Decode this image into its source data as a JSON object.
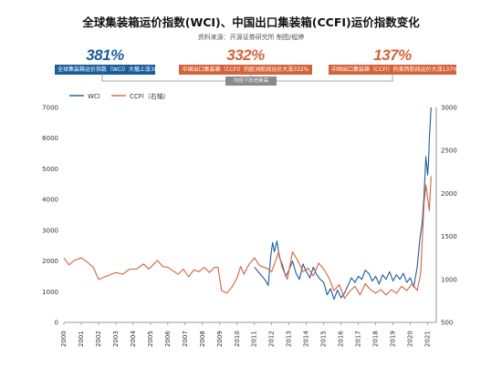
{
  "title": "全球集装箱运价指数(WCI)、中国出口集装箱(CCFI)运价指数变化",
  "source": "资料来源：开源证券研究所    制图/程婷",
  "callouts": [
    {
      "pct": "381%",
      "text": "全球集装箱运价指数（WCI）大幅上涨381%",
      "color": "#1a5d9a"
    },
    {
      "pct": "332%",
      "text": "中国出口集装箱（CCFI）的欧洲航线运价大涨332%",
      "color": "#d4633a"
    },
    {
      "pct": "137%",
      "text": "中国出口集装箱（CCFI）的美西航线运价大涨137%",
      "color": "#d4633a"
    }
  ],
  "note": "均创下历史新高",
  "chart_data": {
    "type": "line",
    "title": "全球集装箱运价指数(WCI)、中国出口集装箱(CCFI)运价指数变化",
    "legend_position": "top-left",
    "grid": false,
    "x_tick_labels": [
      "2000",
      "2001",
      "2002",
      "2003",
      "2004",
      "2005",
      "2006",
      "2007",
      "2008",
      "2009",
      "2010",
      "2011",
      "2012",
      "2013",
      "2014",
      "2015",
      "2016",
      "2017",
      "2018",
      "2019",
      "2020",
      "2021"
    ],
    "xlim": [
      2000,
      2021.5
    ],
    "y_left": {
      "ticks": [
        0,
        1000,
        2000,
        3000,
        4000,
        5000,
        6000,
        7000
      ],
      "ylim": [
        0,
        7000
      ]
    },
    "y_right": {
      "ticks": [
        500,
        1000,
        1500,
        2000,
        2500,
        3000
      ],
      "ylim": [
        500,
        3000
      ]
    },
    "series": [
      {
        "name": "WCI",
        "axis": "left",
        "color": "#1a5d9a",
        "x": [
          2011.0,
          2011.3,
          2011.6,
          2011.8,
          2011.95,
          2012.05,
          2012.15,
          2012.3,
          2012.45,
          2012.6,
          2012.8,
          2013.0,
          2013.2,
          2013.4,
          2013.6,
          2013.8,
          2014.0,
          2014.2,
          2014.4,
          2014.6,
          2014.8,
          2015.0,
          2015.2,
          2015.4,
          2015.6,
          2015.8,
          2016.0,
          2016.2,
          2016.4,
          2016.6,
          2016.8,
          2017.0,
          2017.2,
          2017.4,
          2017.6,
          2017.8,
          2018.0,
          2018.2,
          2018.4,
          2018.6,
          2018.8,
          2019.0,
          2019.2,
          2019.4,
          2019.6,
          2019.8,
          2020.0,
          2020.2,
          2020.4,
          2020.55,
          2020.7,
          2020.8,
          2020.9,
          2020.95,
          2021.0,
          2021.05,
          2021.1,
          2021.15,
          2021.2
        ],
        "y": [
          1800,
          1600,
          1400,
          1200,
          2200,
          2600,
          2300,
          2650,
          2100,
          1900,
          1500,
          1700,
          2000,
          1600,
          1400,
          1900,
          1650,
          1450,
          1800,
          1550,
          1400,
          1300,
          900,
          1100,
          750,
          1050,
          800,
          950,
          1200,
          1450,
          1300,
          1500,
          1400,
          1700,
          1600,
          1350,
          1500,
          1250,
          1550,
          1400,
          1650,
          1350,
          1550,
          1400,
          1600,
          1300,
          1450,
          1150,
          1800,
          2700,
          3300,
          4200,
          5400,
          5100,
          4800,
          5200,
          6000,
          6500,
          7000
        ]
      },
      {
        "name": "CCFI（右轴）",
        "axis": "right",
        "color": "#d4633a",
        "x": [
          2000.0,
          2000.3,
          2000.6,
          2001.0,
          2001.3,
          2001.7,
          2002.0,
          2002.5,
          2003.0,
          2003.4,
          2003.8,
          2004.2,
          2004.6,
          2004.9,
          2005.2,
          2005.4,
          2005.7,
          2006.0,
          2006.3,
          2006.6,
          2006.9,
          2007.2,
          2007.5,
          2007.8,
          2008.1,
          2008.4,
          2008.7,
          2008.9,
          2009.1,
          2009.4,
          2009.7,
          2010.0,
          2010.2,
          2010.4,
          2010.7,
          2011.0,
          2011.3,
          2011.7,
          2012.0,
          2012.2,
          2012.4,
          2012.6,
          2012.9,
          2013.2,
          2013.5,
          2013.8,
          2014.1,
          2014.4,
          2014.7,
          2015.0,
          2015.3,
          2015.6,
          2015.9,
          2016.2,
          2016.5,
          2016.8,
          2017.1,
          2017.4,
          2017.7,
          2018.0,
          2018.3,
          2018.6,
          2018.9,
          2019.2,
          2019.5,
          2019.8,
          2020.1,
          2020.4,
          2020.6,
          2020.8,
          2020.9,
          2021.0,
          2021.1,
          2021.2
        ],
        "y": [
          1250,
          1170,
          1220,
          1250,
          1210,
          1140,
          1000,
          1040,
          1080,
          1060,
          1120,
          1120,
          1180,
          1120,
          1180,
          1220,
          1150,
          1140,
          1100,
          1060,
          1120,
          1030,
          1110,
          1090,
          1140,
          1080,
          1140,
          1140,
          870,
          840,
          910,
          1020,
          1150,
          1060,
          1180,
          1250,
          1160,
          1130,
          1090,
          1200,
          1320,
          1140,
          1000,
          1320,
          1220,
          1090,
          1130,
          1040,
          1190,
          1120,
          1020,
          870,
          940,
          780,
          860,
          920,
          820,
          950,
          880,
          840,
          880,
          820,
          880,
          840,
          920,
          870,
          950,
          870,
          1070,
          1900,
          2100,
          1950,
          1800,
          2200
        ]
      }
    ]
  }
}
